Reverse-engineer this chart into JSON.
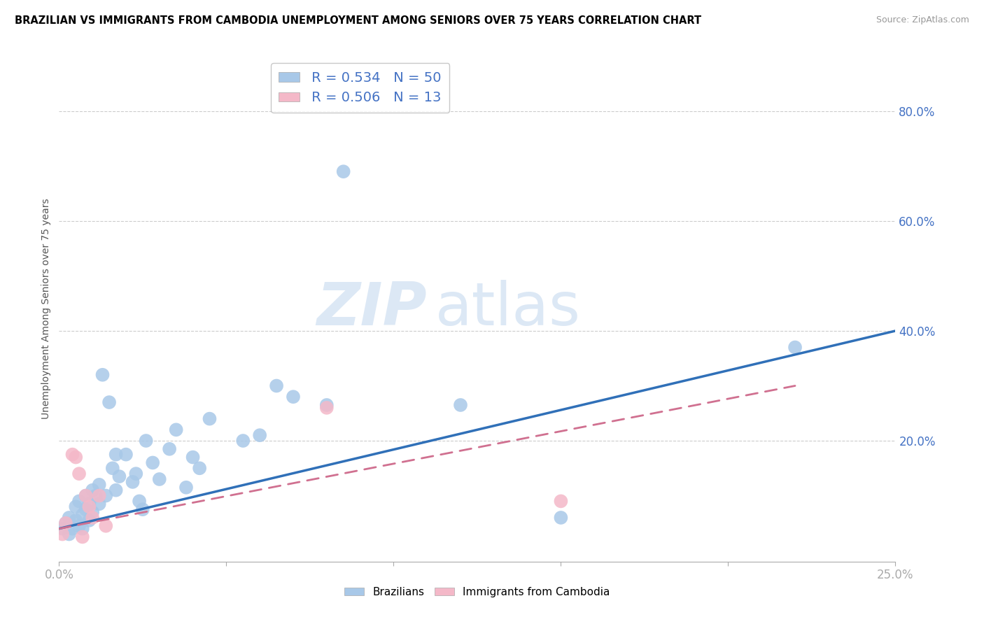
{
  "title": "BRAZILIAN VS IMMIGRANTS FROM CAMBODIA UNEMPLOYMENT AMONG SENIORS OVER 75 YEARS CORRELATION CHART",
  "source": "Source: ZipAtlas.com",
  "ylabel": "Unemployment Among Seniors over 75 years",
  "xlim": [
    0,
    0.25
  ],
  "ylim": [
    -0.02,
    0.9
  ],
  "xticks": [
    0.0,
    0.05,
    0.1,
    0.15,
    0.2,
    0.25
  ],
  "ytick_positions": [
    0.0,
    0.2,
    0.4,
    0.6,
    0.8
  ],
  "ytick_labels": [
    "",
    "20.0%",
    "40.0%",
    "60.0%",
    "80.0%"
  ],
  "xtick_labels": [
    "0.0%",
    "",
    "",
    "",
    "",
    "25.0%"
  ],
  "legend1_r": "0.534",
  "legend1_n": "50",
  "legend2_r": "0.506",
  "legend2_n": "13",
  "blue_scatter_color": "#a8c8e8",
  "pink_scatter_color": "#f4b8c8",
  "trend_blue": "#3070b8",
  "trend_pink": "#d07090",
  "watermark_zip": "ZIP",
  "watermark_atlas": "atlas",
  "brazilians_x": [
    0.001,
    0.002,
    0.003,
    0.003,
    0.004,
    0.005,
    0.005,
    0.006,
    0.006,
    0.007,
    0.007,
    0.008,
    0.008,
    0.009,
    0.009,
    0.01,
    0.01,
    0.011,
    0.012,
    0.012,
    0.013,
    0.014,
    0.015,
    0.016,
    0.017,
    0.017,
    0.018,
    0.02,
    0.022,
    0.023,
    0.024,
    0.025,
    0.026,
    0.028,
    0.03,
    0.033,
    0.035,
    0.038,
    0.04,
    0.042,
    0.045,
    0.055,
    0.06,
    0.065,
    0.07,
    0.08,
    0.085,
    0.12,
    0.15,
    0.22
  ],
  "brazilians_y": [
    0.04,
    0.05,
    0.03,
    0.06,
    0.04,
    0.055,
    0.08,
    0.045,
    0.09,
    0.04,
    0.065,
    0.075,
    0.1,
    0.055,
    0.085,
    0.07,
    0.11,
    0.1,
    0.085,
    0.12,
    0.32,
    0.1,
    0.27,
    0.15,
    0.11,
    0.175,
    0.135,
    0.175,
    0.125,
    0.14,
    0.09,
    0.075,
    0.2,
    0.16,
    0.13,
    0.185,
    0.22,
    0.115,
    0.17,
    0.15,
    0.24,
    0.2,
    0.21,
    0.3,
    0.28,
    0.265,
    0.69,
    0.265,
    0.06,
    0.37
  ],
  "cambodia_x": [
    0.001,
    0.002,
    0.004,
    0.005,
    0.006,
    0.007,
    0.008,
    0.009,
    0.01,
    0.012,
    0.014,
    0.08,
    0.15
  ],
  "cambodia_y": [
    0.03,
    0.05,
    0.175,
    0.17,
    0.14,
    0.025,
    0.1,
    0.08,
    0.06,
    0.1,
    0.045,
    0.26,
    0.09
  ]
}
